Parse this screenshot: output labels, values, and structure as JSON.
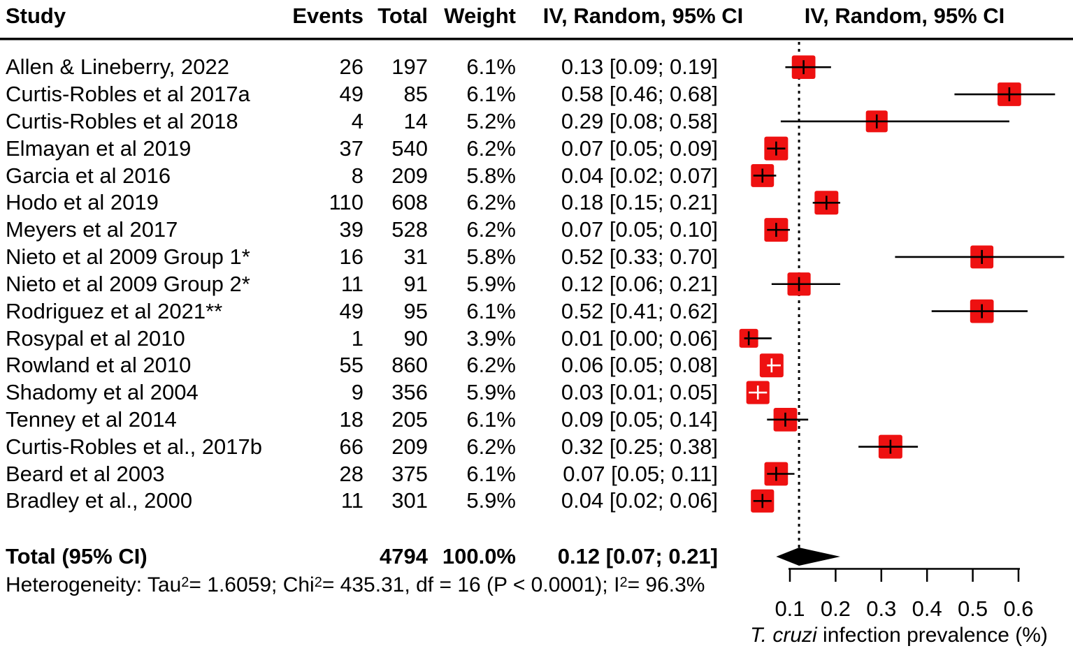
{
  "chart_data": {
    "type": "forest",
    "title": "",
    "xlabel": "T. cruzi infection prevalence (%)",
    "xlim": [
      0.0,
      0.7
    ],
    "grid": false,
    "columns": {
      "study": "Study",
      "events": "Events",
      "total": "Total",
      "weight": "Weight",
      "effect": "IV, Random, 95% CI",
      "plot": "IV, Random, 95% CI"
    },
    "studies": [
      {
        "name": "Allen & Lineberry, 2022",
        "events": "26",
        "total": "197",
        "weight": "6.1%",
        "ci_label": "0.13 [0.09; 0.19]",
        "est": 0.13,
        "lo": 0.09,
        "hi": 0.19,
        "marker_inside": false
      },
      {
        "name": "Curtis-Robles et al 2017a",
        "events": "49",
        "total": "85",
        "weight": "6.1%",
        "ci_label": "0.58 [0.46; 0.68]",
        "est": 0.58,
        "lo": 0.46,
        "hi": 0.68,
        "marker_inside": false
      },
      {
        "name": "Curtis-Robles et al 2018",
        "events": "4",
        "total": "14",
        "weight": "5.2%",
        "ci_label": "0.29 [0.08; 0.58]",
        "est": 0.29,
        "lo": 0.08,
        "hi": 0.58,
        "marker_inside": false
      },
      {
        "name": "Elmayan et al 2019",
        "events": "37",
        "total": "540",
        "weight": "6.2%",
        "ci_label": "0.07 [0.05; 0.09]",
        "est": 0.07,
        "lo": 0.05,
        "hi": 0.09,
        "marker_inside": false
      },
      {
        "name": "Garcia et al 2016",
        "events": "8",
        "total": "209",
        "weight": "5.8%",
        "ci_label": "0.04 [0.02; 0.07]",
        "est": 0.04,
        "lo": 0.02,
        "hi": 0.07,
        "marker_inside": false
      },
      {
        "name": "Hodo et al 2019",
        "events": "110",
        "total": "608",
        "weight": "6.2%",
        "ci_label": "0.18 [0.15; 0.21]",
        "est": 0.18,
        "lo": 0.15,
        "hi": 0.21,
        "marker_inside": false
      },
      {
        "name": "Meyers et al 2017",
        "events": "39",
        "total": "528",
        "weight": "6.2%",
        "ci_label": "0.07 [0.05; 0.10]",
        "est": 0.07,
        "lo": 0.05,
        "hi": 0.1,
        "marker_inside": false
      },
      {
        "name": "Nieto et al 2009 Group 1*",
        "events": "16",
        "total": "31",
        "weight": "5.8%",
        "ci_label": "0.52 [0.33; 0.70]",
        "est": 0.52,
        "lo": 0.33,
        "hi": 0.7,
        "marker_inside": false
      },
      {
        "name": "Nieto et al 2009 Group 2*",
        "events": "11",
        "total": "91",
        "weight": "5.9%",
        "ci_label": "0.12 [0.06; 0.21]",
        "est": 0.12,
        "lo": 0.06,
        "hi": 0.21,
        "marker_inside": false
      },
      {
        "name": "Rodriguez et al 2021**",
        "events": "49",
        "total": "95",
        "weight": "6.1%",
        "ci_label": "0.52 [0.41; 0.62]",
        "est": 0.52,
        "lo": 0.41,
        "hi": 0.62,
        "marker_inside": false
      },
      {
        "name": "Rosypal et al 2010",
        "events": "1",
        "total": "90",
        "weight": "3.9%",
        "ci_label": "0.01 [0.00; 0.06]",
        "est": 0.01,
        "lo": 0.0,
        "hi": 0.06,
        "marker_inside": false
      },
      {
        "name": "Rowland et al 2010",
        "events": "55",
        "total": "860",
        "weight": "6.2%",
        "ci_label": "0.06 [0.05; 0.08]",
        "est": 0.06,
        "lo": 0.05,
        "hi": 0.08,
        "marker_inside": true
      },
      {
        "name": "Shadomy et al 2004",
        "events": "9",
        "total": "356",
        "weight": "5.9%",
        "ci_label": "0.03 [0.01; 0.05]",
        "est": 0.03,
        "lo": 0.01,
        "hi": 0.05,
        "marker_inside": true
      },
      {
        "name": "Tenney et al 2014",
        "events": "18",
        "total": "205",
        "weight": "6.1%",
        "ci_label": "0.09 [0.05; 0.14]",
        "est": 0.09,
        "lo": 0.05,
        "hi": 0.14,
        "marker_inside": false
      },
      {
        "name": "Curtis-Robles et al., 2017b",
        "events": "66",
        "total": "209",
        "weight": "6.2%",
        "ci_label": "0.32 [0.25; 0.38]",
        "est": 0.32,
        "lo": 0.25,
        "hi": 0.38,
        "marker_inside": false
      },
      {
        "name": "Beard et al 2003",
        "events": "28",
        "total": "375",
        "weight": "6.1%",
        "ci_label": "0.07 [0.05; 0.11]",
        "est": 0.07,
        "lo": 0.05,
        "hi": 0.11,
        "marker_inside": false
      },
      {
        "name": "Bradley et al., 2000",
        "events": "11",
        "total": "301",
        "weight": "5.9%",
        "ci_label": "0.04 [0.02; 0.06]",
        "est": 0.04,
        "lo": 0.02,
        "hi": 0.06,
        "marker_inside": false
      }
    ],
    "pooled": {
      "label": "Total (95% CI)",
      "events": "",
      "total": "4794",
      "weight": "100.0%",
      "ci_label": "0.12 [0.07; 0.21]",
      "est": 0.12,
      "lo": 0.07,
      "hi": 0.21
    },
    "heterogeneity_parts": [
      {
        "t": "Heterogeneity: Tau",
        "sup": false
      },
      {
        "t": "2",
        "sup": true
      },
      {
        "t": " = 1.6059; Chi",
        "sup": false
      },
      {
        "t": "2",
        "sup": true
      },
      {
        "t": " = 435.31, df = 16 (P < 0.0001); I",
        "sup": false
      },
      {
        "t": "2",
        "sup": true
      },
      {
        "t": " = 96.3%",
        "sup": false
      }
    ],
    "axis": {
      "ticks": [
        0.1,
        0.2,
        0.3,
        0.4,
        0.5,
        0.6
      ],
      "tick_labels": [
        "0.1",
        "0.2",
        "0.3",
        "0.4",
        "0.5",
        "0.6"
      ],
      "label_italic": "T. cruzi",
      "label_rest": " infection prevalence (%)"
    },
    "colors": {
      "square": "#ee1111",
      "line": "#000000",
      "inside_marker": "#ffffff",
      "text": "#000000"
    }
  }
}
